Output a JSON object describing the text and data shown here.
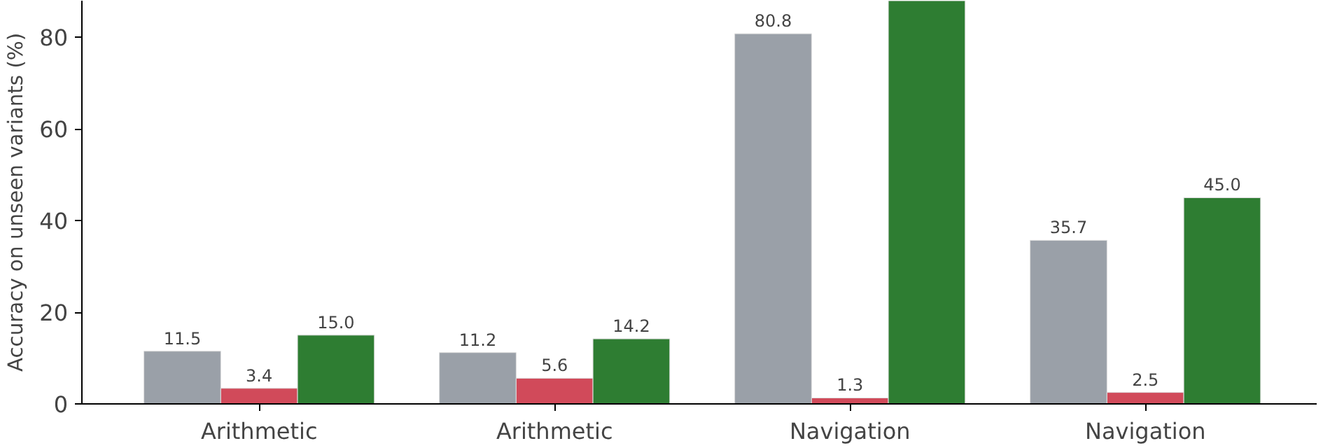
{
  "chart_data": {
    "type": "bar",
    "ylabel": "Accuracy on unseen variants (%)",
    "categories": [
      "Arithmetic",
      "Arithmetic",
      "Navigation",
      "Navigation"
    ],
    "series": [
      {
        "color": "#9aa0a8",
        "values": [
          11.5,
          11.2,
          80.8,
          35.7
        ],
        "value_labels": [
          "11.5",
          "11.2",
          "80.8",
          "35.7"
        ]
      },
      {
        "color": "#d14a5a",
        "values": [
          3.4,
          5.6,
          1.3,
          2.5
        ],
        "value_labels": [
          "3.4",
          "5.6",
          "1.3",
          "2.5"
        ]
      },
      {
        "color": "#2e7d32",
        "values": [
          15.0,
          14.2,
          88,
          45.0
        ],
        "value_labels": [
          "15.0",
          "14.2",
          null,
          "45.0"
        ]
      }
    ],
    "ylim": [
      0,
      88
    ],
    "yticks": [
      0,
      20,
      40,
      60,
      80
    ],
    "grid": false
  }
}
